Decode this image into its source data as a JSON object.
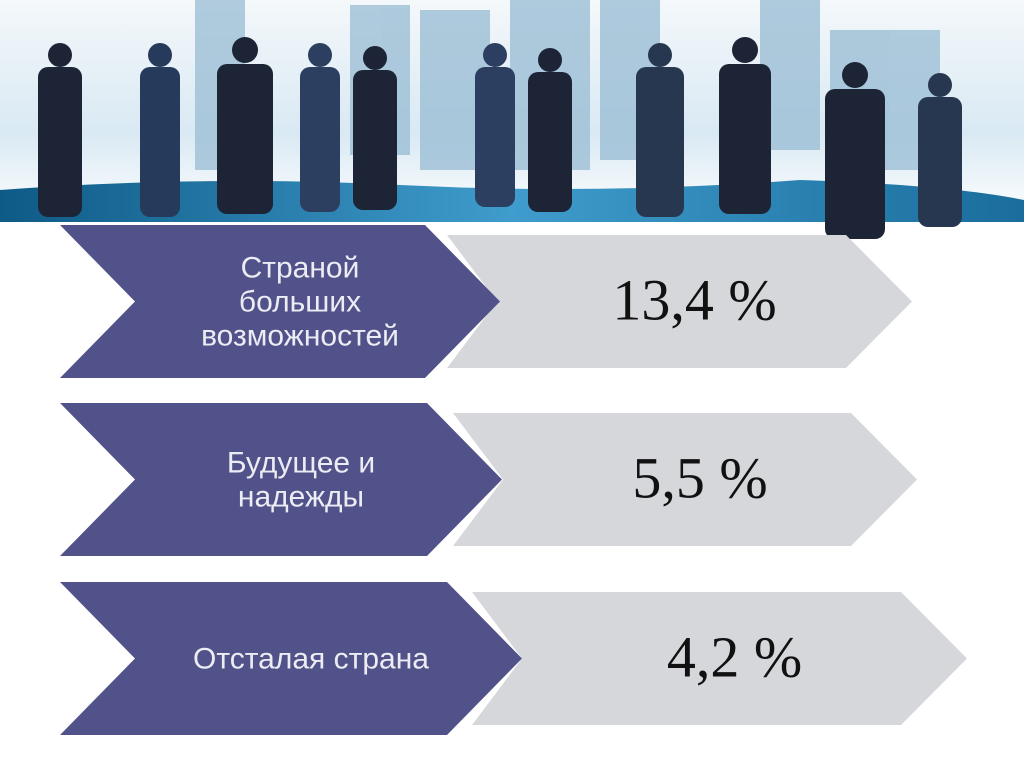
{
  "items": [
    {
      "label": [
        "Страной",
        "больших",
        "возможностей"
      ],
      "value": "13,4 %"
    },
    {
      "label": [
        "Будущее и",
        "надежды"
      ],
      "value": "5,5 %"
    },
    {
      "label": [
        "Отсталая страна"
      ],
      "value": "4,2 %"
    }
  ]
}
